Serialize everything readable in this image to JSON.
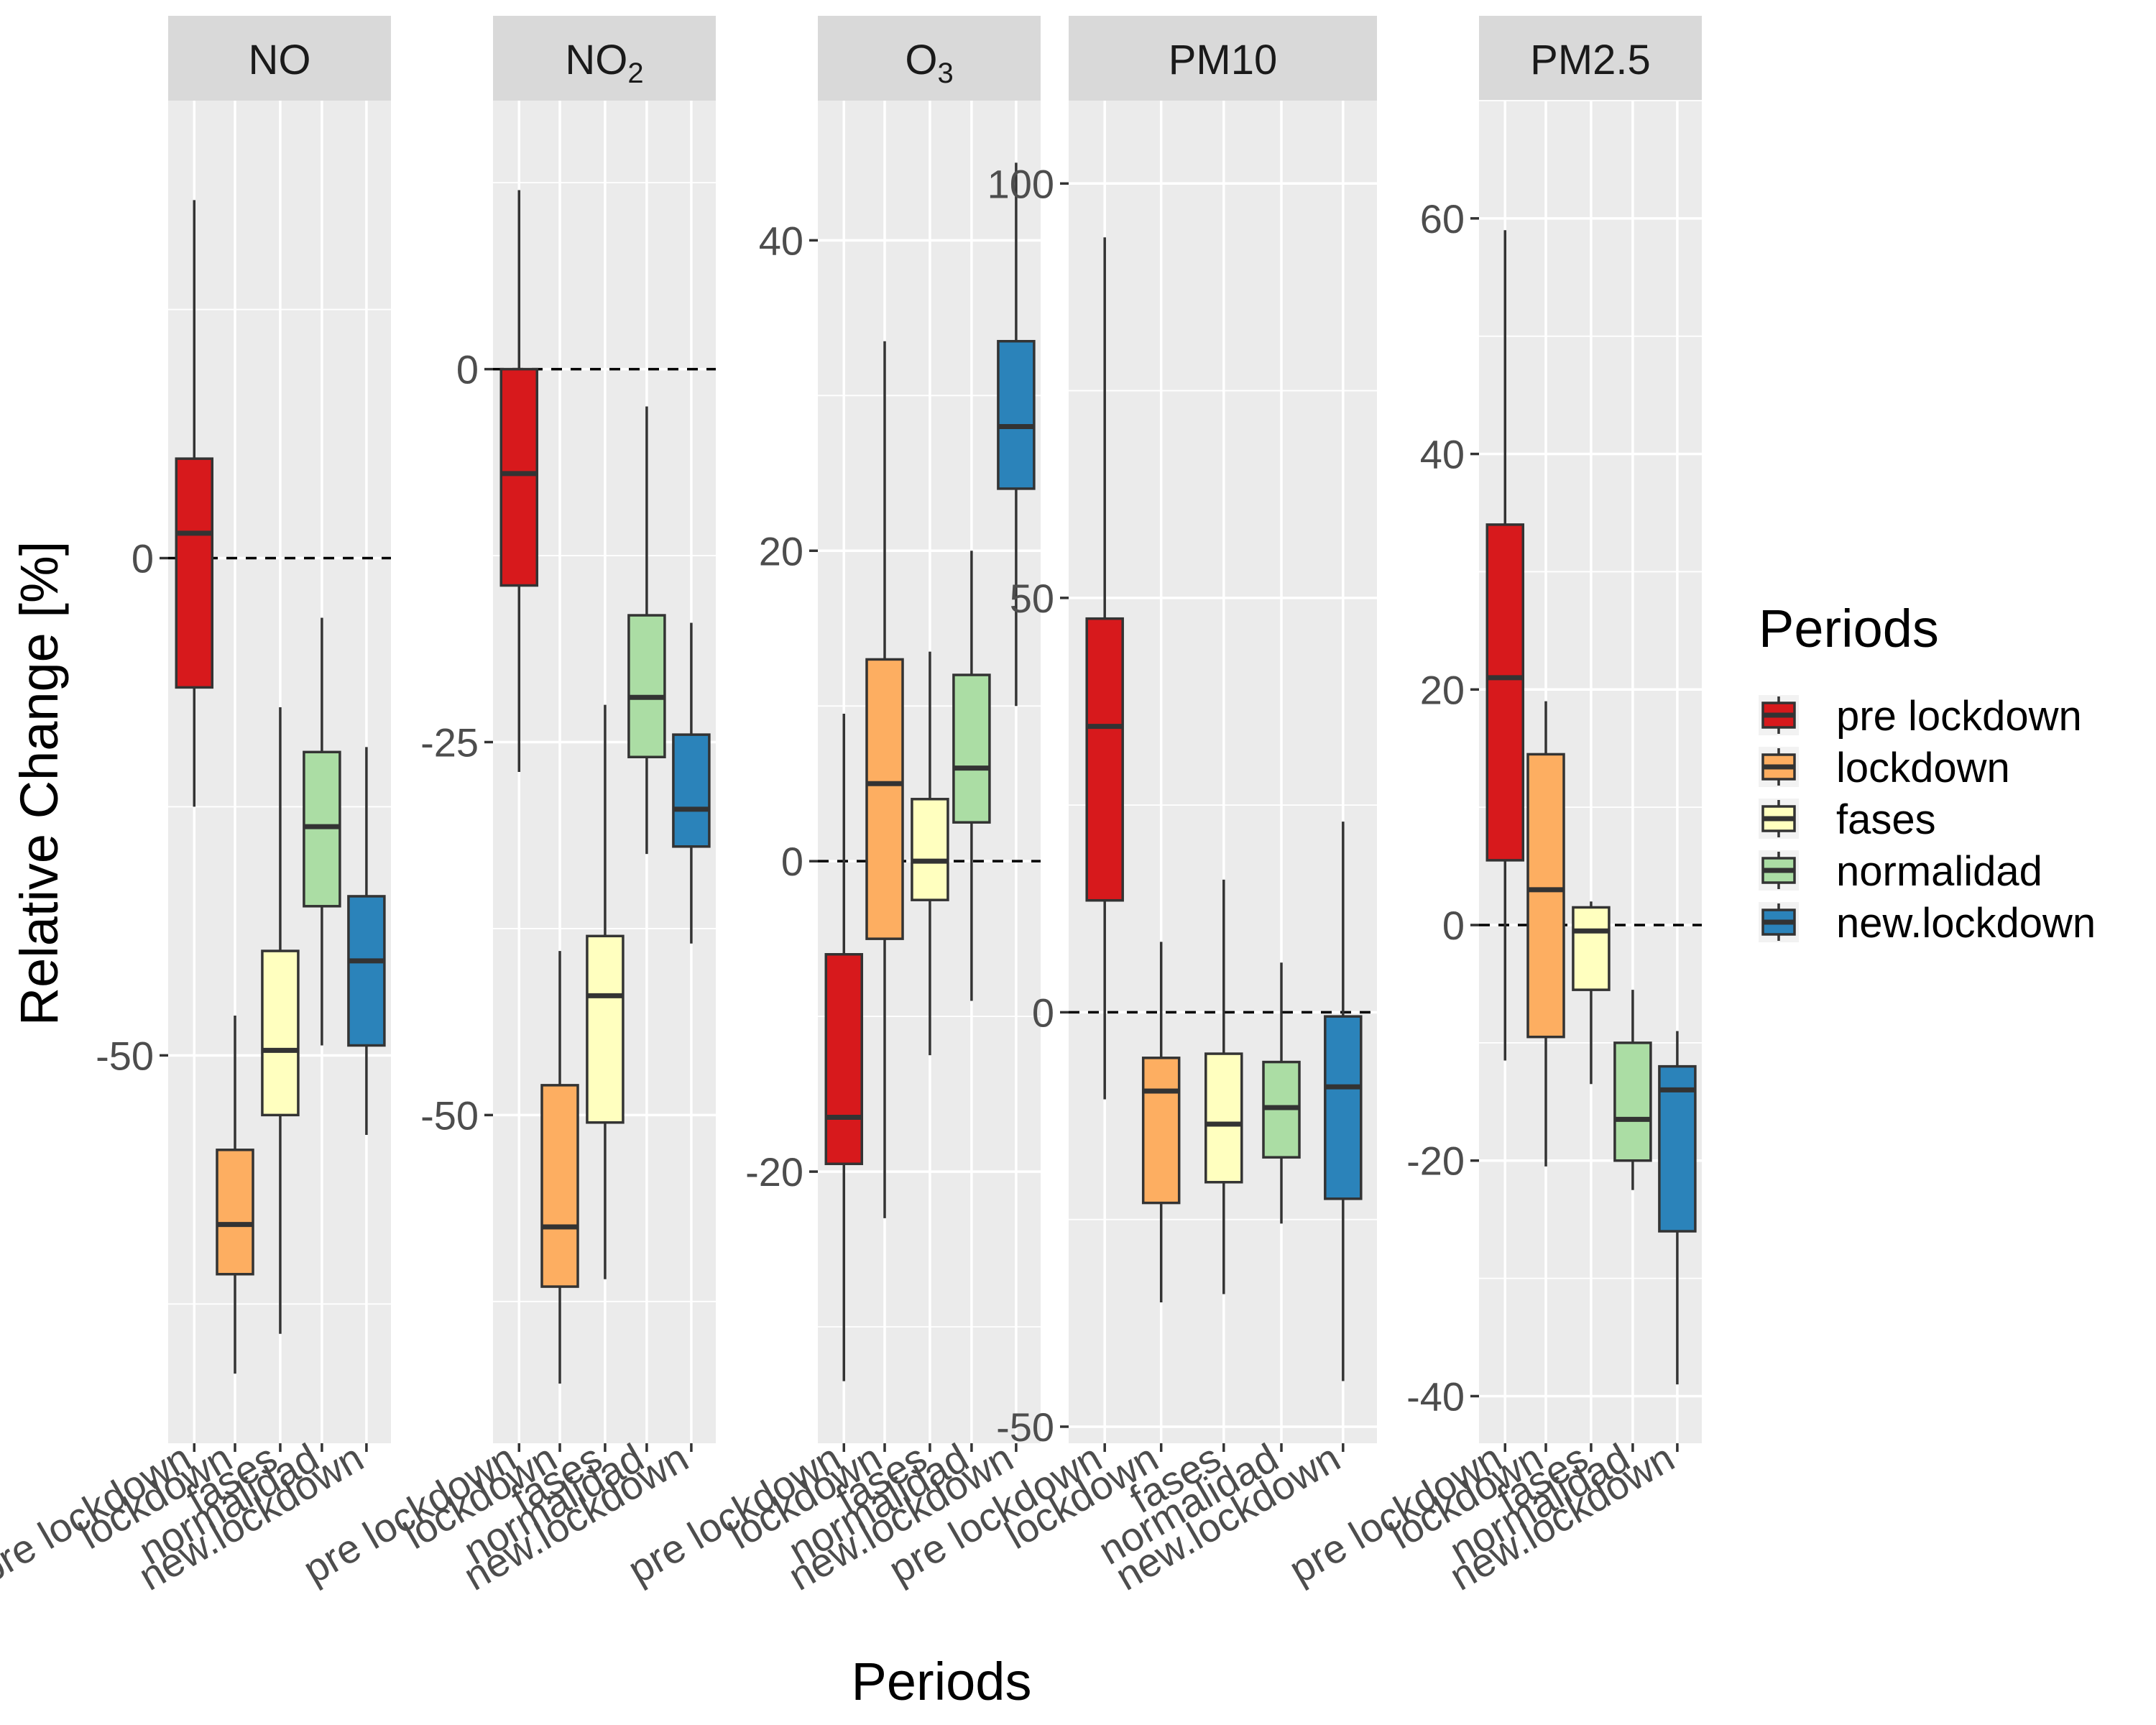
{
  "chart_data": {
    "type": "boxplot",
    "xlabel": "Periods",
    "ylabel": "Relative Change [%]",
    "legend": {
      "title": "Periods",
      "position": "right",
      "entries": [
        {
          "label": "pre lockdown",
          "color": "#d7191c"
        },
        {
          "label": "lockdown",
          "color": "#fdae61"
        },
        {
          "label": "fases",
          "color": "#ffffbf"
        },
        {
          "label": "normalidad",
          "color": "#abdda4"
        },
        {
          "label": "new.lockdown",
          "color": "#2b83ba"
        }
      ]
    },
    "categories": [
      "pre lockdown",
      "lockdown",
      "fases",
      "normalidad",
      "new.lockdown"
    ],
    "reference_line": 0,
    "grid": true,
    "facets": [
      {
        "title": "NO",
        "title_main": "NO",
        "title_sub": "",
        "ylim": [
          -89,
          46
        ],
        "yticks": [
          -50,
          0
        ],
        "boxes": [
          {
            "whisker_low": -25,
            "q1": -13,
            "median": 2.5,
            "q3": 10,
            "whisker_high": 36
          },
          {
            "whisker_low": -82,
            "q1": -72,
            "median": -67,
            "q3": -59.5,
            "whisker_high": -46
          },
          {
            "whisker_low": -78,
            "q1": -56,
            "median": -49.5,
            "q3": -39.5,
            "whisker_high": -15
          },
          {
            "whisker_low": -49,
            "q1": -35,
            "median": -27,
            "q3": -19.5,
            "whisker_high": -6
          },
          {
            "whisker_low": -58,
            "q1": -49,
            "median": -40.5,
            "q3": -34,
            "whisker_high": -19
          }
        ]
      },
      {
        "title": "NO2",
        "title_main": "NO",
        "title_sub": "2",
        "ylim": [
          -72,
          18
        ],
        "yticks": [
          -50,
          -25,
          0
        ],
        "boxes": [
          {
            "whisker_low": -27,
            "q1": -14.5,
            "median": -7,
            "q3": 0,
            "whisker_high": 12
          },
          {
            "whisker_low": -68,
            "q1": -61.5,
            "median": -57.5,
            "q3": -48,
            "whisker_high": -39
          },
          {
            "whisker_low": -61,
            "q1": -50.5,
            "median": -42,
            "q3": -38,
            "whisker_high": -22.5
          },
          {
            "whisker_low": -32.5,
            "q1": -26,
            "median": -22,
            "q3": -16.5,
            "whisker_high": -2.5
          },
          {
            "whisker_low": -38.5,
            "q1": -32,
            "median": -29.5,
            "q3": -24.5,
            "whisker_high": -17
          }
        ]
      },
      {
        "title": "O3",
        "title_main": "O",
        "title_sub": "3",
        "ylim": [
          -37.5,
          49
        ],
        "yticks": [
          -20,
          0,
          20,
          40
        ],
        "boxes": [
          {
            "whisker_low": -33.5,
            "q1": -19.5,
            "median": -16.5,
            "q3": -6,
            "whisker_high": 9.5
          },
          {
            "whisker_low": -23,
            "q1": -5,
            "median": 5,
            "q3": 13,
            "whisker_high": 33.5
          },
          {
            "whisker_low": -12.5,
            "q1": -2.5,
            "median": 0,
            "q3": 4,
            "whisker_high": 13.5
          },
          {
            "whisker_low": -9,
            "q1": 2.5,
            "median": 6,
            "q3": 12,
            "whisker_high": 20
          },
          {
            "whisker_low": 10,
            "q1": 24,
            "median": 28,
            "q3": 33.5,
            "whisker_high": 45
          }
        ]
      },
      {
        "title": "PM10",
        "title_main": "PM10",
        "title_sub": "",
        "ylim": [
          -52,
          110
        ],
        "yticks": [
          -50,
          0,
          50,
          100
        ],
        "boxes": [
          {
            "whisker_low": -10.5,
            "q1": 13.5,
            "median": 34.5,
            "q3": 47.5,
            "whisker_high": 93.5
          },
          {
            "whisker_low": -35,
            "q1": -23,
            "median": -9.5,
            "q3": -5.5,
            "whisker_high": 8.5
          },
          {
            "whisker_low": -34,
            "q1": -20.5,
            "median": -13.5,
            "q3": -5,
            "whisker_high": 16
          },
          {
            "whisker_low": -25.5,
            "q1": -17.5,
            "median": -11.5,
            "q3": -6,
            "whisker_high": 6
          },
          {
            "whisker_low": -44.5,
            "q1": -22.5,
            "median": -9,
            "q3": -0.5,
            "whisker_high": 23
          }
        ]
      },
      {
        "title": "PM2.5",
        "title_main": "PM2.5",
        "title_sub": "",
        "ylim": [
          -44,
          70
        ],
        "yticks": [
          -40,
          -20,
          0,
          20,
          40,
          60
        ],
        "boxes": [
          {
            "whisker_low": -11.5,
            "q1": 5.5,
            "median": 21,
            "q3": 34,
            "whisker_high": 59
          },
          {
            "whisker_low": -20.5,
            "q1": -9.5,
            "median": 3,
            "q3": 14.5,
            "whisker_high": 19
          },
          {
            "whisker_low": -13.5,
            "q1": -5.5,
            "median": -0.5,
            "q3": 1.5,
            "whisker_high": 2
          },
          {
            "whisker_low": -22.5,
            "q1": -20,
            "median": -16.5,
            "q3": -10,
            "whisker_high": -5.5
          },
          {
            "whisker_low": -39,
            "q1": -26,
            "median": -14,
            "q3": -12,
            "whisker_high": -9
          }
        ]
      }
    ]
  }
}
